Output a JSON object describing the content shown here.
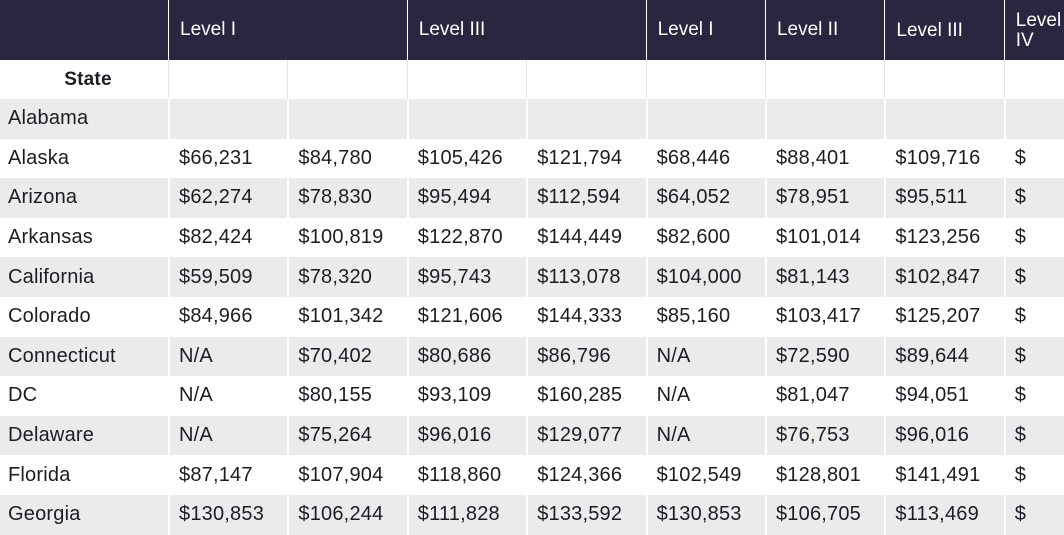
{
  "table": {
    "headers": [
      "",
      "Level I",
      "",
      "Level III",
      "",
      "Level I",
      "Level II",
      "Level III",
      "Level IV"
    ],
    "state_label": "State",
    "rows": [
      {
        "state": "Alabama",
        "values": [
          "",
          "",
          "",
          "",
          "",
          "",
          "",
          ""
        ]
      },
      {
        "state": "Alaska",
        "values": [
          "$66,231",
          "$84,780",
          "$105,426",
          "$121,794",
          "$68,446",
          "$88,401",
          "$109,716",
          "$"
        ]
      },
      {
        "state": "Arizona",
        "values": [
          "$62,274",
          "$78,830",
          "$95,494",
          "$112,594",
          "$64,052",
          "$78,951",
          "$95,511",
          "$"
        ]
      },
      {
        "state": "Arkansas",
        "values": [
          "$82,424",
          "$100,819",
          "$122,870",
          "$144,449",
          "$82,600",
          "$101,014",
          "$123,256",
          "$"
        ]
      },
      {
        "state": "California",
        "values": [
          "$59,509",
          "$78,320",
          "$95,743",
          "$113,078",
          "$104,000",
          "$81,143",
          "$102,847",
          "$"
        ]
      },
      {
        "state": "Colorado",
        "values": [
          "$84,966",
          "$101,342",
          "$121,606",
          "$144,333",
          "$85,160",
          "$103,417",
          "$125,207",
          "$"
        ]
      },
      {
        "state": "Connecticut",
        "values": [
          "N/A",
          "$70,402",
          "$80,686",
          "$86,796",
          "N/A",
          "$72,590",
          "$89,644",
          "$"
        ]
      },
      {
        "state": "DC",
        "values": [
          "N/A",
          "$80,155",
          "$93,109",
          "$160,285",
          "N/A",
          "$81,047",
          "$94,051",
          "$"
        ]
      },
      {
        "state": "Delaware",
        "values": [
          "N/A",
          "$75,264",
          "$96,016",
          "$129,077",
          "N/A",
          "$76,753",
          "$96,016",
          "$"
        ]
      },
      {
        "state": "Florida",
        "values": [
          "$87,147",
          "$107,904",
          "$118,860",
          "$124,366",
          "$102,549",
          "$128,801",
          "$141,491",
          "$"
        ]
      },
      {
        "state": "Georgia",
        "values": [
          "$130,853",
          "$106,244",
          "$111,828",
          "$133,592",
          "$130,853",
          "$106,705",
          "$113,469",
          "$"
        ]
      }
    ]
  }
}
